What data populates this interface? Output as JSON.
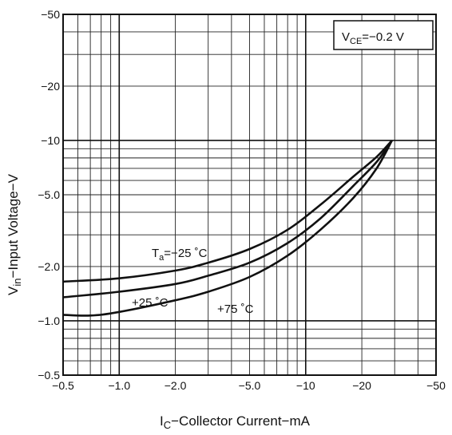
{
  "chart_data": {
    "type": "line",
    "x_scale": "log",
    "y_scale": "log",
    "xlabel_main": "I",
    "xlabel_sub": "C",
    "xlabel_rest": "−Collector Current−mA",
    "ylabel_main": "V",
    "ylabel_sub": "in",
    "ylabel_rest": "−Input Voltage−V",
    "xlim": [
      -0.5,
      -50
    ],
    "ylim": [
      -0.5,
      -50
    ],
    "grid": true,
    "x_ticks": [
      {
        "value": -0.5,
        "label": "−0.5"
      },
      {
        "value": -1.0,
        "label": "−1.0"
      },
      {
        "value": -2.0,
        "label": "−2.0"
      },
      {
        "value": -5.0,
        "label": "−5.0"
      },
      {
        "value": -10,
        "label": "−10"
      },
      {
        "value": -20,
        "label": "−20"
      },
      {
        "value": -50,
        "label": "−50"
      }
    ],
    "y_ticks": [
      {
        "value": -0.5,
        "label": "−0.5"
      },
      {
        "value": -1.0,
        "label": "−1.0"
      },
      {
        "value": -2.0,
        "label": "−2.0"
      },
      {
        "value": -5.0,
        "label": "−5.0"
      },
      {
        "value": -10,
        "label": "−10"
      },
      {
        "value": -20,
        "label": "−20"
      },
      {
        "value": -50,
        "label": "−50"
      }
    ],
    "condition": {
      "main": "V",
      "sub": "CE",
      "rest": "=−0.2 V"
    },
    "series": [
      {
        "name": "Tₐ=−25 °C",
        "label_main": "T",
        "label_sub": "a",
        "label_rest": "=−25 ˚C",
        "x": [
          -0.5,
          -1.0,
          -2.0,
          -3.0,
          -5.0,
          -8.0,
          -12.0,
          -18.0,
          -24.0,
          -29.0
        ],
        "y": [
          -1.65,
          -1.72,
          -1.9,
          -2.1,
          -2.5,
          -3.2,
          -4.4,
          -6.3,
          -8.1,
          -10.0
        ]
      },
      {
        "name": "+25 °C",
        "label_main": "+25 ˚C",
        "x": [
          -0.5,
          -1.0,
          -2.0,
          -3.0,
          -5.0,
          -8.0,
          -12.0,
          -18.0,
          -24.0,
          -29.0
        ],
        "y": [
          -1.35,
          -1.45,
          -1.6,
          -1.78,
          -2.1,
          -2.7,
          -3.7,
          -5.6,
          -7.6,
          -10.0
        ]
      },
      {
        "name": "+75 °C",
        "label_main": "+75 ˚C",
        "x": [
          -0.5,
          -0.7,
          -1.0,
          -2.0,
          -3.0,
          -5.0,
          -8.0,
          -12.0,
          -18.0,
          -24.0,
          -29.0
        ],
        "y": [
          -1.08,
          -1.07,
          -1.12,
          -1.3,
          -1.45,
          -1.75,
          -2.3,
          -3.2,
          -4.8,
          -7.0,
          -10.0
        ]
      }
    ]
  }
}
